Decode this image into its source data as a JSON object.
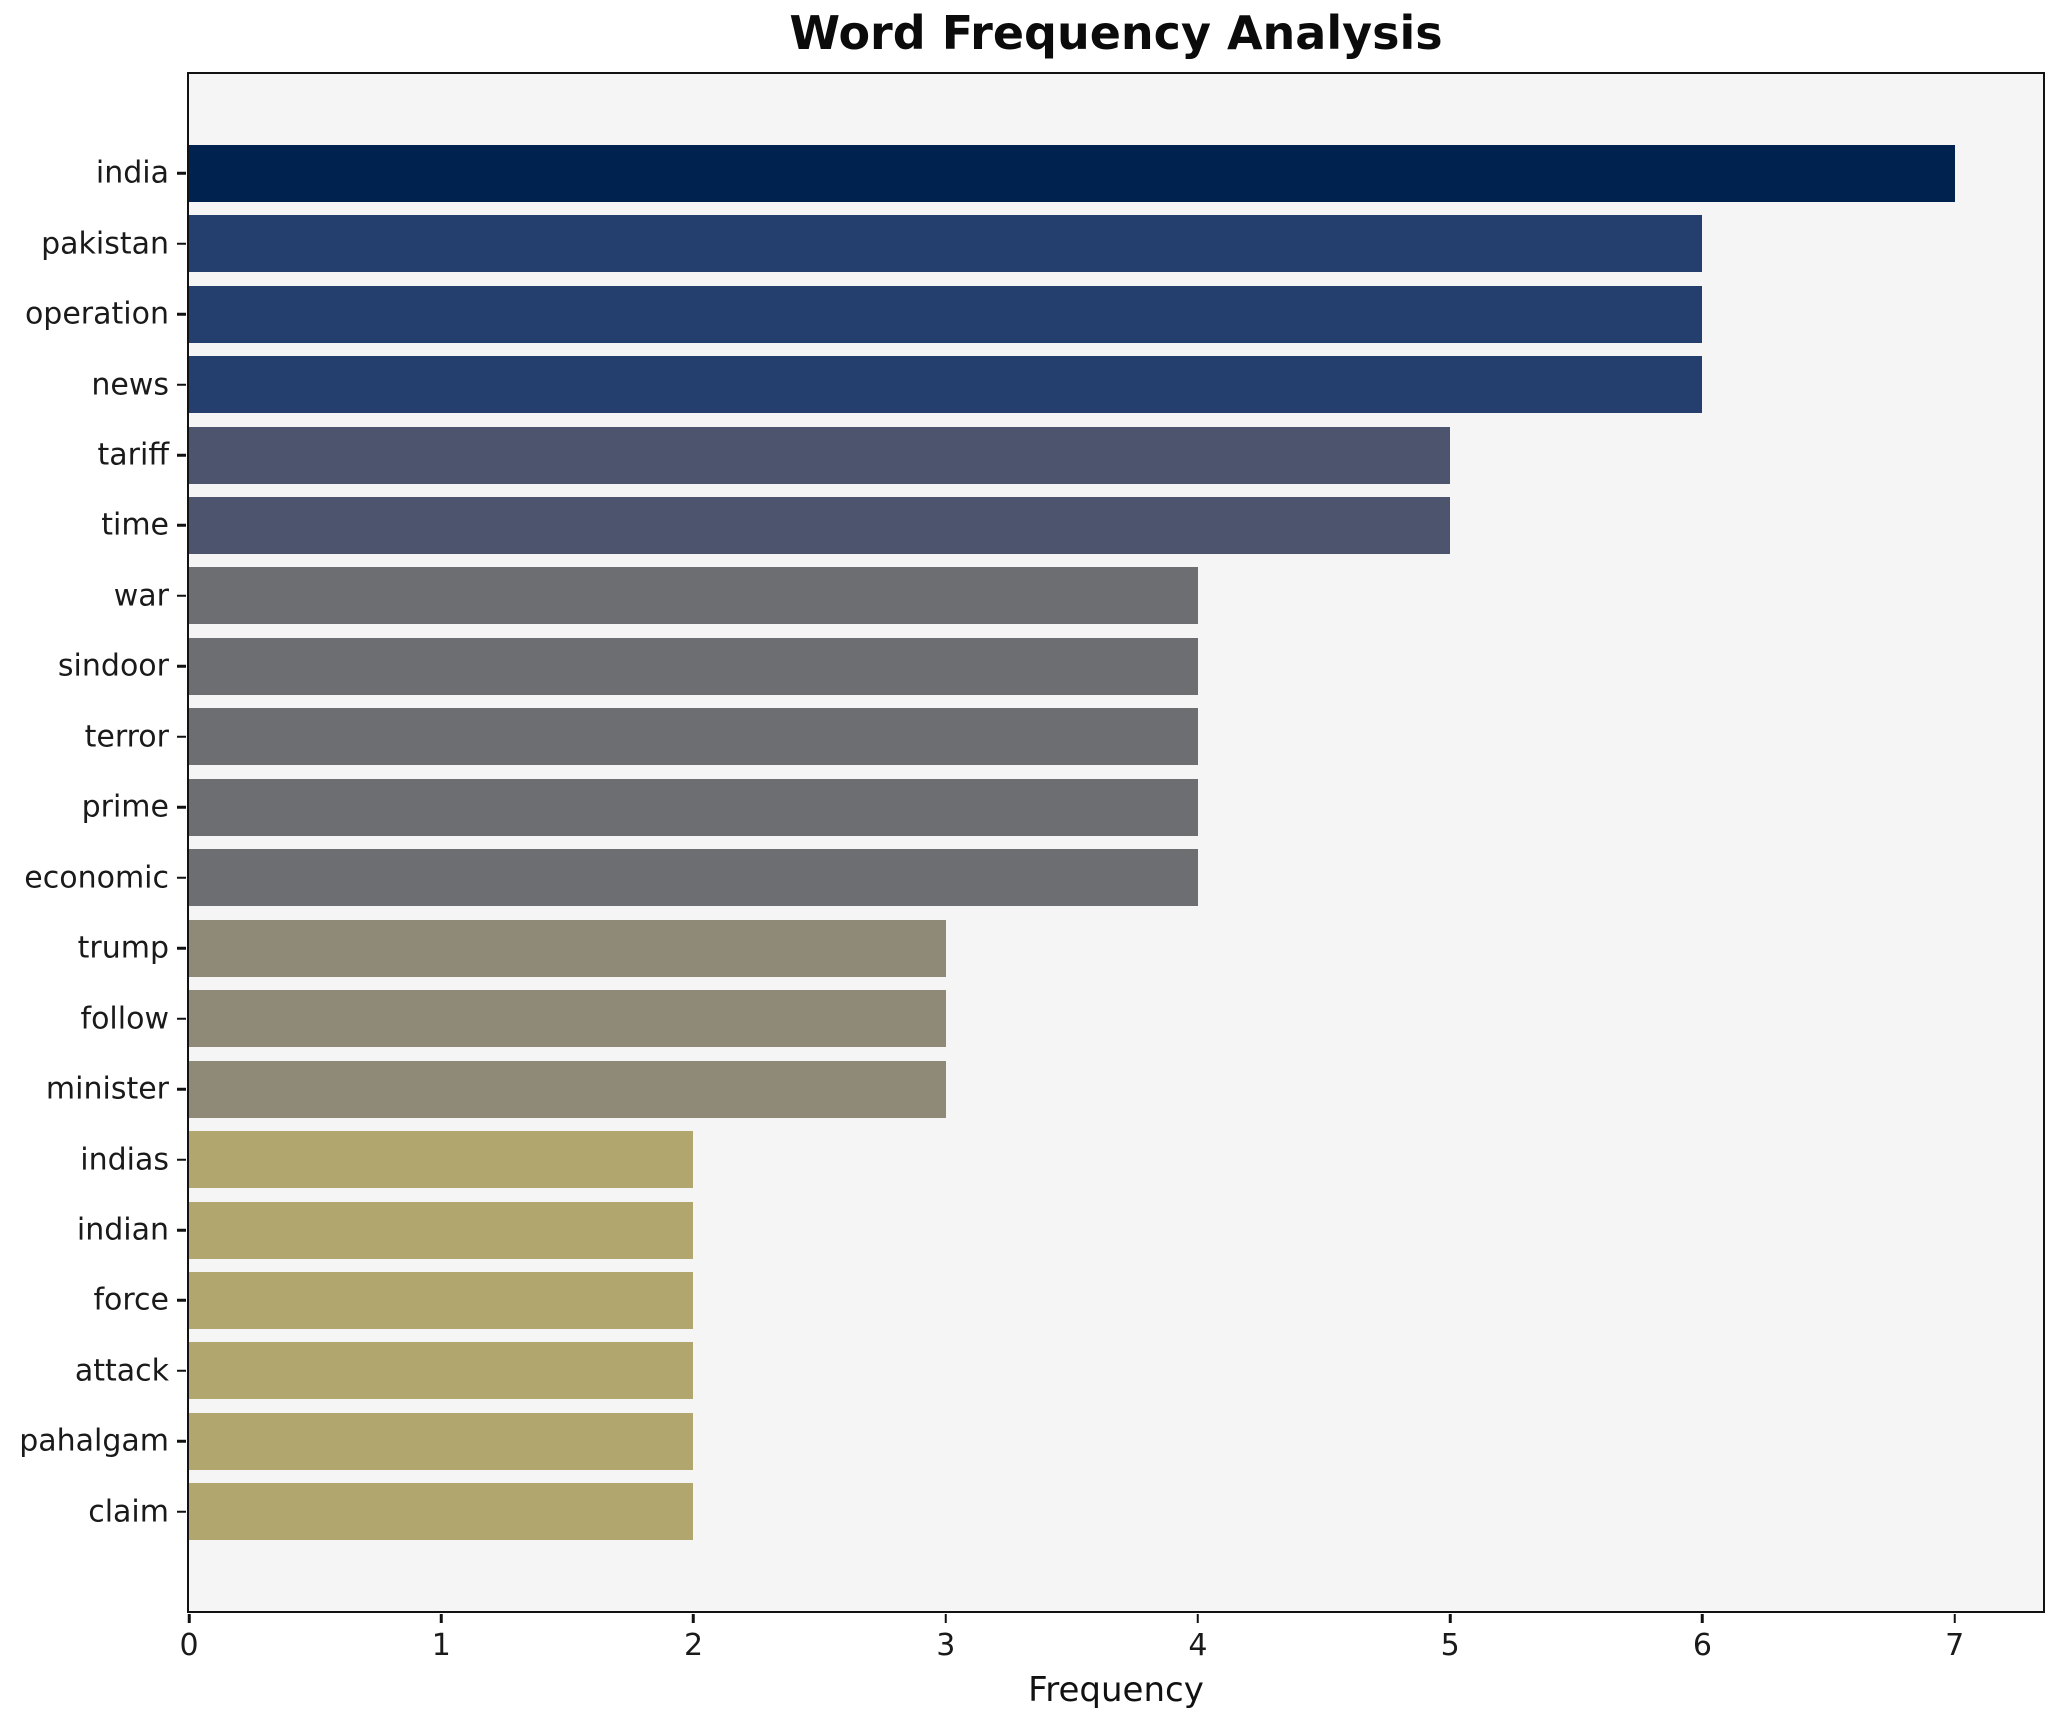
{
  "title": "Word Frequency Analysis",
  "chart_data": {
    "type": "bar",
    "orientation": "horizontal",
    "title": "Word Frequency Analysis",
    "xlabel": "Frequency",
    "ylabel": "",
    "categories": [
      "india",
      "pakistan",
      "operation",
      "news",
      "tariff",
      "time",
      "war",
      "sindoor",
      "terror",
      "prime",
      "economic",
      "trump",
      "follow",
      "minister",
      "indias",
      "indian",
      "force",
      "attack",
      "pahalgam",
      "claim"
    ],
    "values": [
      7,
      6,
      6,
      6,
      5,
      5,
      4,
      4,
      4,
      4,
      4,
      3,
      3,
      3,
      2,
      2,
      2,
      2,
      2,
      2
    ],
    "xlim": [
      0,
      7.35
    ],
    "xticks": [
      0,
      1,
      2,
      3,
      4,
      5,
      6,
      7
    ],
    "grid": false,
    "legend": null,
    "bar_colors_by_value": {
      "7": "#00224e",
      "6": "#243e6d",
      "5": "#4d546d",
      "4": "#6d6e71",
      "3": "#8f8977",
      "2": "#b1a66e"
    }
  },
  "colors": {
    "figure_background": "#ffffff",
    "plot_background": "#f5f5f6",
    "spine": "#121212",
    "tick_text": "#1a1a1a",
    "title_text": "#0b0b0b"
  }
}
